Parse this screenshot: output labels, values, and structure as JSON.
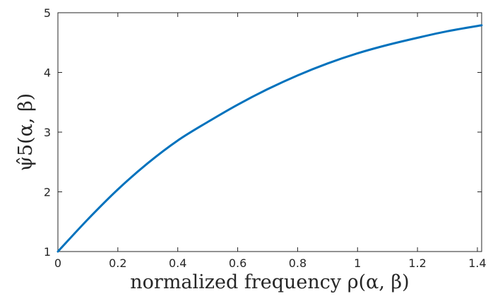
{
  "chart_data": {
    "type": "line",
    "xlabel": "normalized frequency ρ(α, β)",
    "ylabel": "ψ̂5(α, β)",
    "xlim": [
      0,
      1.4142
    ],
    "ylim": [
      1,
      5
    ],
    "grid": false,
    "legend": "none",
    "x_ticks": [
      "0",
      "0.2",
      "0.4",
      "0.6",
      "0.8",
      "1",
      "1.2",
      "1.4"
    ],
    "y_ticks": [
      "1",
      "2",
      "3",
      "4",
      "5"
    ],
    "series": [
      {
        "color": "#0072BD",
        "x": [
          0,
          0.1,
          0.2,
          0.3,
          0.4,
          0.5,
          0.6,
          0.7,
          0.8,
          0.9,
          1.0,
          1.1,
          1.2,
          1.3,
          1.4142
        ],
        "y": [
          1.0,
          1.54,
          2.04,
          2.48,
          2.86,
          3.17,
          3.46,
          3.72,
          3.95,
          4.15,
          4.32,
          4.46,
          4.58,
          4.69,
          4.79
        ]
      }
    ]
  }
}
